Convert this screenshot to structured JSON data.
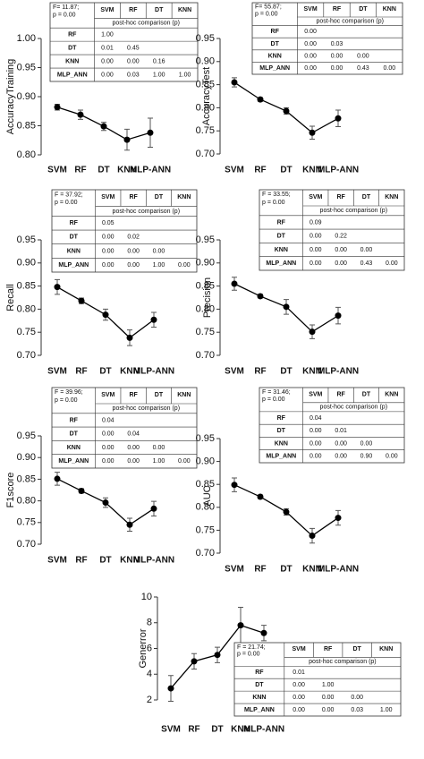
{
  "chart_data": [
    {
      "type": "line",
      "y_label": "AccuracyTraining",
      "categories": [
        "SVM",
        "RF",
        "DT",
        "KNN",
        "MLP-ANN"
      ],
      "series": [
        {
          "values": [
            0.882,
            0.869,
            0.849,
            0.826,
            0.838
          ],
          "errors": [
            0.005,
            0.008,
            0.007,
            0.018,
            0.025
          ],
          "color": "#000000"
        }
      ],
      "ylim": [
        0.8,
        1.0
      ],
      "yticks": [
        {
          "value": 0.8,
          "label": "0.80"
        },
        {
          "value": 0.85,
          "label": "0.85"
        },
        {
          "value": 0.9,
          "label": "0.90"
        },
        {
          "value": 0.95,
          "label": "0.95"
        },
        {
          "value": 1.0,
          "label": "1.00"
        }
      ],
      "table": {
        "stat": "F= 11.87;",
        "p": "p = 0.00",
        "columns": [
          "SVM",
          "RF",
          "DT",
          "KNN"
        ],
        "subtitle": "post-hoc comparison (p)",
        "rows": [
          {
            "label": "RF",
            "cells": [
              "1.00"
            ]
          },
          {
            "label": "DT",
            "cells": [
              "0.01",
              "0.45"
            ]
          },
          {
            "label": "KNN",
            "cells": [
              "0.00",
              "0.00",
              "0.16"
            ]
          },
          {
            "label": "MLP_ANN",
            "cells": [
              "0.00",
              "0.03",
              "1.00",
              "1.00"
            ]
          }
        ]
      }
    },
    {
      "type": "line",
      "y_label": "AccuracyTest",
      "categories": [
        "SVM",
        "RF",
        "DT",
        "KNN",
        "MLP-ANN"
      ],
      "series": [
        {
          "values": [
            0.855,
            0.818,
            0.793,
            0.746,
            0.777
          ],
          "errors": [
            0.01,
            0.004,
            0.007,
            0.014,
            0.018
          ],
          "color": "#000000"
        }
      ],
      "ylim": [
        0.7,
        0.95
      ],
      "yticks": [
        {
          "value": 0.7,
          "label": "0.70"
        },
        {
          "value": 0.75,
          "label": "0.75"
        },
        {
          "value": 0.8,
          "label": "0.80"
        },
        {
          "value": 0.85,
          "label": "0.85"
        },
        {
          "value": 0.9,
          "label": "0.90"
        },
        {
          "value": 0.95,
          "label": "0.95"
        }
      ],
      "table": {
        "stat": "F= 55.87;",
        "p": "p = 0.00",
        "columns": [
          "SVM",
          "RF",
          "DT",
          "KNN"
        ],
        "subtitle": "post-hoc comparison (p)",
        "rows": [
          {
            "label": "RF",
            "cells": [
              "0.00"
            ]
          },
          {
            "label": "DT",
            "cells": [
              "0.00",
              "0.03"
            ]
          },
          {
            "label": "KNN",
            "cells": [
              "0.00",
              "0.00",
              "0.00"
            ]
          },
          {
            "label": "MLP_ANN",
            "cells": [
              "0.00",
              "0.00",
              "0.43",
              "0.00"
            ]
          }
        ]
      }
    },
    {
      "type": "line",
      "y_label": "Recall",
      "categories": [
        "SVM",
        "RF",
        "DT",
        "KNN",
        "MLP-ANN"
      ],
      "series": [
        {
          "values": [
            0.848,
            0.818,
            0.788,
            0.738,
            0.777
          ],
          "errors": [
            0.016,
            0.006,
            0.012,
            0.017,
            0.016
          ],
          "color": "#000000"
        }
      ],
      "ylim": [
        0.7,
        0.95
      ],
      "yticks": [
        {
          "value": 0.7,
          "label": "0.70"
        },
        {
          "value": 0.75,
          "label": "0.75"
        },
        {
          "value": 0.8,
          "label": "0.80"
        },
        {
          "value": 0.85,
          "label": "0.85"
        },
        {
          "value": 0.9,
          "label": "0.90"
        },
        {
          "value": 0.95,
          "label": "0.95"
        }
      ],
      "table": {
        "stat": "F = 37.92;",
        "p": "p = 0.00",
        "columns": [
          "SVM",
          "RF",
          "DT",
          "KNN"
        ],
        "subtitle": "post-hoc comparison (p)",
        "rows": [
          {
            "label": "RF",
            "cells": [
              "0.05"
            ]
          },
          {
            "label": "DT",
            "cells": [
              "0.00",
              "0.02"
            ]
          },
          {
            "label": "KNN",
            "cells": [
              "0.00",
              "0.00",
              "0.00"
            ]
          },
          {
            "label": "MLP_ANN",
            "cells": [
              "0.00",
              "0.00",
              "1.00",
              "0.00"
            ]
          }
        ]
      }
    },
    {
      "type": "line",
      "y_label": "Precision",
      "categories": [
        "SVM",
        "RF",
        "DT",
        "KNN",
        "MLP-ANN"
      ],
      "series": [
        {
          "values": [
            0.855,
            0.828,
            0.805,
            0.751,
            0.786
          ],
          "errors": [
            0.014,
            0.004,
            0.016,
            0.015,
            0.018
          ],
          "color": "#000000"
        }
      ],
      "ylim": [
        0.7,
        0.95
      ],
      "yticks": [
        {
          "value": 0.7,
          "label": "0.70"
        },
        {
          "value": 0.75,
          "label": "0.75"
        },
        {
          "value": 0.8,
          "label": "0.80"
        },
        {
          "value": 0.85,
          "label": "0.85"
        },
        {
          "value": 0.9,
          "label": "0.90"
        },
        {
          "value": 0.95,
          "label": "0.95"
        }
      ],
      "table": {
        "stat": "F = 33.55;",
        "p": "p = 0.00",
        "columns": [
          "SVM",
          "RF",
          "DT",
          "KNN"
        ],
        "subtitle": "post-hoc comparison (p)",
        "rows": [
          {
            "label": "RF",
            "cells": [
              "0.09"
            ]
          },
          {
            "label": "DT",
            "cells": [
              "0.00",
              "0.22"
            ]
          },
          {
            "label": "KNN",
            "cells": [
              "0.00",
              "0.00",
              "0.00"
            ]
          },
          {
            "label": "MLP_ANN",
            "cells": [
              "0.00",
              "0.00",
              "0.43",
              "0.00"
            ]
          }
        ]
      }
    },
    {
      "type": "line",
      "y_label": "F1score",
      "categories": [
        "SVM",
        "RF",
        "DT",
        "KNN",
        "MLP-ANN"
      ],
      "series": [
        {
          "values": [
            0.851,
            0.823,
            0.796,
            0.745,
            0.782
          ],
          "errors": [
            0.015,
            0.005,
            0.011,
            0.015,
            0.017
          ],
          "color": "#000000"
        }
      ],
      "ylim": [
        0.7,
        0.95
      ],
      "yticks": [
        {
          "value": 0.7,
          "label": "0.70"
        },
        {
          "value": 0.75,
          "label": "0.75"
        },
        {
          "value": 0.8,
          "label": "0.80"
        },
        {
          "value": 0.85,
          "label": "0.85"
        },
        {
          "value": 0.9,
          "label": "0.90"
        },
        {
          "value": 0.95,
          "label": "0.95"
        }
      ],
      "table": {
        "stat": "F = 39.96;",
        "p": "p = 0.00",
        "columns": [
          "SVM",
          "RF",
          "DT",
          "KNN"
        ],
        "subtitle": "post-hoc comparison (p)",
        "rows": [
          {
            "label": "RF",
            "cells": [
              "0.04"
            ]
          },
          {
            "label": "DT",
            "cells": [
              "0.00",
              "0.04"
            ]
          },
          {
            "label": "KNN",
            "cells": [
              "0.00",
              "0.00",
              "0.00"
            ]
          },
          {
            "label": "MLP_ANN",
            "cells": [
              "0.00",
              "0.00",
              "1.00",
              "0.00"
            ]
          }
        ]
      }
    },
    {
      "type": "line",
      "y_label": "AUC",
      "categories": [
        "SVM",
        "RF",
        "DT",
        "KNN",
        "MLP-ANN"
      ],
      "series": [
        {
          "values": [
            0.849,
            0.823,
            0.79,
            0.738,
            0.777
          ],
          "errors": [
            0.015,
            0.004,
            0.007,
            0.016,
            0.016
          ],
          "color": "#000000"
        }
      ],
      "ylim": [
        0.7,
        0.95
      ],
      "yticks": [
        {
          "value": 0.7,
          "label": "0.70"
        },
        {
          "value": 0.75,
          "label": "0.75"
        },
        {
          "value": 0.8,
          "label": "0.80"
        },
        {
          "value": 0.85,
          "label": "0.85"
        },
        {
          "value": 0.9,
          "label": "0.90"
        },
        {
          "value": 0.95,
          "label": "0.95"
        }
      ],
      "table": {
        "stat": "F = 31.46;",
        "p": "p = 0.00",
        "columns": [
          "SVM",
          "RF",
          "DT",
          "KNN"
        ],
        "subtitle": "post-hoc comparison (p)",
        "rows": [
          {
            "label": "RF",
            "cells": [
              "0.04"
            ]
          },
          {
            "label": "DT",
            "cells": [
              "0.00",
              "0.01"
            ]
          },
          {
            "label": "KNN",
            "cells": [
              "0.00",
              "0.00",
              "0.00"
            ]
          },
          {
            "label": "MLP_ANN",
            "cells": [
              "0.00",
              "0.00",
              "0.90",
              "0.00"
            ]
          }
        ]
      }
    },
    {
      "type": "line",
      "y_label": "Generror",
      "categories": [
        "SVM",
        "RF",
        "DT",
        "KNN",
        "MLP-ANN"
      ],
      "series": [
        {
          "values": [
            2.9,
            5.0,
            5.5,
            7.8,
            7.2
          ],
          "errors": [
            1.0,
            0.6,
            0.6,
            1.4,
            0.6
          ],
          "color": "#000000"
        }
      ],
      "ylim": [
        2,
        10
      ],
      "yticks": [
        2,
        4,
        6,
        8,
        10
      ],
      "table": {
        "stat": "F = 21.74;",
        "p": "p = 0.00",
        "columns": [
          "SVM",
          "RF",
          "DT",
          "KNN"
        ],
        "subtitle": "post-hoc comparison (p)",
        "rows": [
          {
            "label": "RF",
            "cells": [
              "0.01"
            ]
          },
          {
            "label": "DT",
            "cells": [
              "0.00",
              "1.00"
            ]
          },
          {
            "label": "KNN",
            "cells": [
              "0.00",
              "0.00",
              "0.00"
            ]
          },
          {
            "label": "MLP_ANN",
            "cells": [
              "0.00",
              "0.00",
              "0.03",
              "1.00"
            ]
          }
        ]
      }
    }
  ]
}
